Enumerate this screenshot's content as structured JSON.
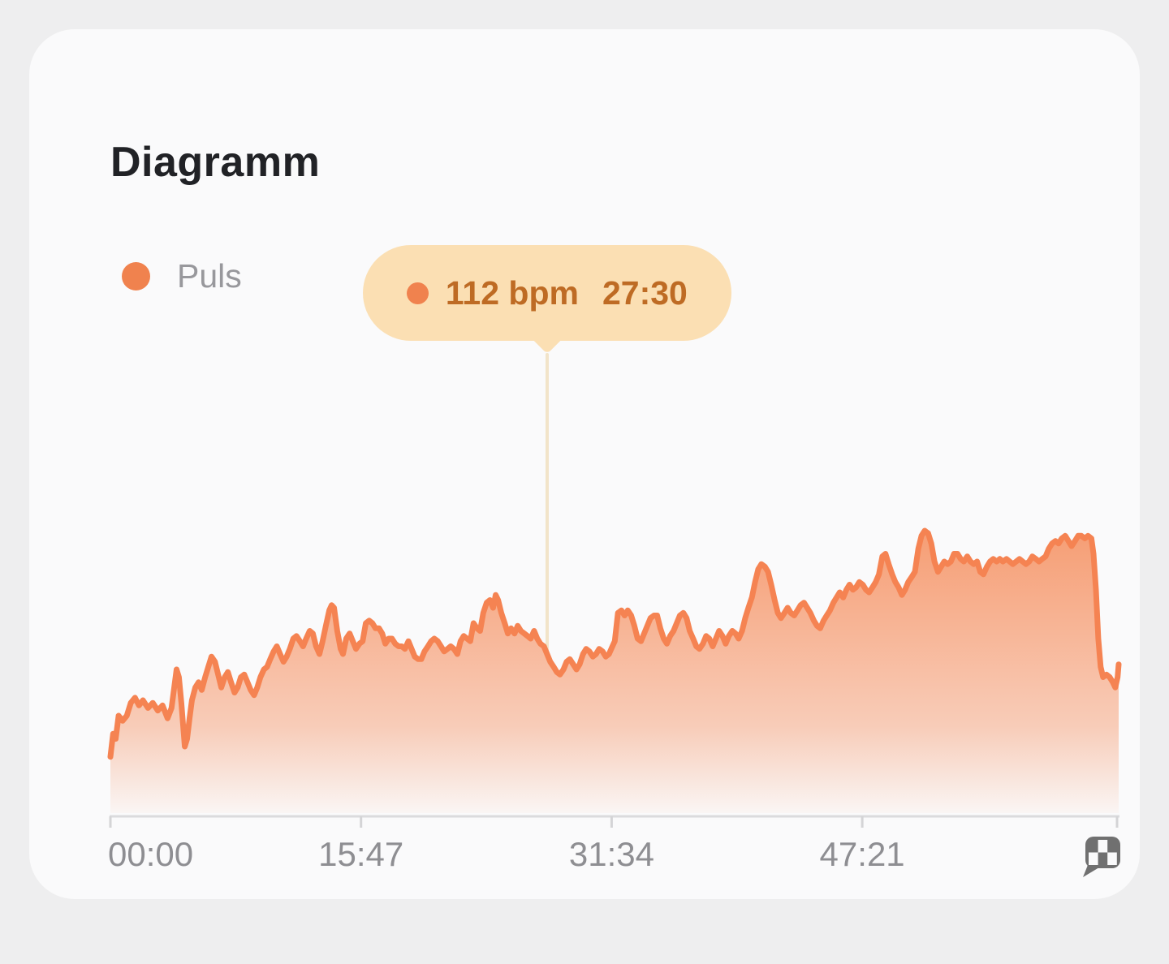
{
  "card": {
    "title": "Diagramm"
  },
  "legend": {
    "label": "Puls",
    "dot_color": "#F0824E",
    "label_color": "#98989C"
  },
  "tooltip": {
    "value": "112 bpm",
    "time": "27:30",
    "bg": "#FBDFB3",
    "text_color": "#BE6B24",
    "dot_color": "#F0824E"
  },
  "icons": {
    "end_of_axis": "finish-flag-icon",
    "legend_marker": "legend-dot-icon",
    "tooltip_marker": "tooltip-dot-icon"
  },
  "colors": {
    "page_bg": "#EEEEEF",
    "card_bg": "#FAFAFB",
    "line": "#F58352",
    "fill": "#F5824C",
    "axis": "#DBDBDD",
    "tick": "#D4D4D6",
    "tick_label": "#8E8E92",
    "marker_line": "#F2E4C9",
    "flag": "#707070",
    "title": "#212226"
  },
  "chart_data": {
    "type": "area",
    "title": "Diagramm",
    "series_name": "Puls",
    "unit": "bpm",
    "legend_position": "top-left",
    "grid": false,
    "x_axis": {
      "tick_labels": [
        "00:00",
        "15:47",
        "31:34",
        "47:21"
      ],
      "tick_t_s": [
        0,
        947,
        1894,
        2841
      ],
      "t_max_s": 3810,
      "end_marker": "finish-flag"
    },
    "y_axis": {
      "visible": false,
      "est_range_bpm": [
        70,
        162
      ]
    },
    "highlighted_point": {
      "t_s": 1650,
      "t_label": "27:30",
      "bpm": 112
    },
    "points": [
      [
        0,
        72
      ],
      [
        10,
        81
      ],
      [
        20,
        79
      ],
      [
        31,
        88
      ],
      [
        46,
        86
      ],
      [
        62,
        88
      ],
      [
        77,
        93
      ],
      [
        93,
        95
      ],
      [
        108,
        92
      ],
      [
        123,
        94
      ],
      [
        142,
        91
      ],
      [
        160,
        93
      ],
      [
        179,
        90
      ],
      [
        197,
        92
      ],
      [
        216,
        87
      ],
      [
        231,
        91
      ],
      [
        241,
        99
      ],
      [
        250,
        106
      ],
      [
        259,
        103
      ],
      [
        268,
        93
      ],
      [
        281,
        76
      ],
      [
        290,
        79
      ],
      [
        299,
        87
      ],
      [
        308,
        94
      ],
      [
        321,
        99
      ],
      [
        333,
        101
      ],
      [
        345,
        98
      ],
      [
        358,
        103
      ],
      [
        370,
        107
      ],
      [
        382,
        111
      ],
      [
        395,
        109
      ],
      [
        407,
        104
      ],
      [
        419,
        99
      ],
      [
        432,
        103
      ],
      [
        444,
        105
      ],
      [
        456,
        101
      ],
      [
        469,
        97
      ],
      [
        481,
        99
      ],
      [
        493,
        103
      ],
      [
        506,
        104
      ],
      [
        518,
        101
      ],
      [
        530,
        98
      ],
      [
        543,
        96
      ],
      [
        555,
        99
      ],
      [
        567,
        103
      ],
      [
        580,
        106
      ],
      [
        592,
        107
      ],
      [
        604,
        110
      ],
      [
        617,
        113
      ],
      [
        629,
        115
      ],
      [
        641,
        112
      ],
      [
        654,
        109
      ],
      [
        666,
        111
      ],
      [
        678,
        114
      ],
      [
        691,
        118
      ],
      [
        703,
        119
      ],
      [
        716,
        117
      ],
      [
        728,
        115
      ],
      [
        740,
        118
      ],
      [
        753,
        121
      ],
      [
        765,
        120
      ],
      [
        777,
        115
      ],
      [
        790,
        112
      ],
      [
        802,
        117
      ],
      [
        814,
        123
      ],
      [
        827,
        129
      ],
      [
        836,
        131
      ],
      [
        845,
        130
      ],
      [
        857,
        121
      ],
      [
        870,
        114
      ],
      [
        879,
        112
      ],
      [
        891,
        118
      ],
      [
        904,
        120
      ],
      [
        916,
        117
      ],
      [
        928,
        114
      ],
      [
        941,
        116
      ],
      [
        953,
        117
      ],
      [
        965,
        124
      ],
      [
        978,
        125
      ],
      [
        990,
        124
      ],
      [
        1002,
        122
      ],
      [
        1015,
        122
      ],
      [
        1027,
        120
      ],
      [
        1039,
        116
      ],
      [
        1052,
        118
      ],
      [
        1064,
        118
      ],
      [
        1076,
        116
      ],
      [
        1089,
        115
      ],
      [
        1101,
        115
      ],
      [
        1113,
        114
      ],
      [
        1126,
        117
      ],
      [
        1138,
        114
      ],
      [
        1150,
        111
      ],
      [
        1163,
        110
      ],
      [
        1175,
        110
      ],
      [
        1187,
        113
      ],
      [
        1200,
        115
      ],
      [
        1212,
        117
      ],
      [
        1224,
        118
      ],
      [
        1237,
        117
      ],
      [
        1249,
        115
      ],
      [
        1261,
        113
      ],
      [
        1274,
        114
      ],
      [
        1286,
        115
      ],
      [
        1298,
        114
      ],
      [
        1311,
        112
      ],
      [
        1323,
        117
      ],
      [
        1335,
        119
      ],
      [
        1348,
        118
      ],
      [
        1360,
        117
      ],
      [
        1372,
        124
      ],
      [
        1385,
        122
      ],
      [
        1397,
        121
      ],
      [
        1409,
        128
      ],
      [
        1422,
        132
      ],
      [
        1434,
        133
      ],
      [
        1446,
        130
      ],
      [
        1456,
        135
      ],
      [
        1465,
        133
      ],
      [
        1477,
        128
      ],
      [
        1490,
        124
      ],
      [
        1502,
        120
      ],
      [
        1514,
        122
      ],
      [
        1527,
        120
      ],
      [
        1539,
        123
      ],
      [
        1551,
        121
      ],
      [
        1564,
        120
      ],
      [
        1576,
        119
      ],
      [
        1588,
        118
      ],
      [
        1601,
        121
      ],
      [
        1613,
        118
      ],
      [
        1625,
        116
      ],
      [
        1638,
        115
      ],
      [
        1650,
        112
      ],
      [
        1662,
        109
      ],
      [
        1675,
        107
      ],
      [
        1687,
        105
      ],
      [
        1699,
        104
      ],
      [
        1712,
        106
      ],
      [
        1724,
        109
      ],
      [
        1736,
        110
      ],
      [
        1749,
        108
      ],
      [
        1761,
        106
      ],
      [
        1773,
        108
      ],
      [
        1786,
        112
      ],
      [
        1798,
        114
      ],
      [
        1810,
        113
      ],
      [
        1823,
        111
      ],
      [
        1835,
        112
      ],
      [
        1847,
        114
      ],
      [
        1860,
        113
      ],
      [
        1872,
        111
      ],
      [
        1884,
        112
      ],
      [
        1897,
        115
      ],
      [
        1906,
        117
      ],
      [
        1918,
        128
      ],
      [
        1931,
        129
      ],
      [
        1943,
        127
      ],
      [
        1955,
        129
      ],
      [
        1968,
        127
      ],
      [
        1980,
        123
      ],
      [
        1992,
        118
      ],
      [
        2005,
        117
      ],
      [
        2017,
        120
      ],
      [
        2029,
        123
      ],
      [
        2041,
        126
      ],
      [
        2054,
        127
      ],
      [
        2066,
        127
      ],
      [
        2078,
        122
      ],
      [
        2091,
        118
      ],
      [
        2103,
        116
      ],
      [
        2115,
        119
      ],
      [
        2128,
        121
      ],
      [
        2140,
        124
      ],
      [
        2152,
        127
      ],
      [
        2165,
        128
      ],
      [
        2177,
        126
      ],
      [
        2189,
        121
      ],
      [
        2202,
        118
      ],
      [
        2214,
        115
      ],
      [
        2226,
        114
      ],
      [
        2239,
        116
      ],
      [
        2251,
        119
      ],
      [
        2263,
        118
      ],
      [
        2276,
        115
      ],
      [
        2288,
        118
      ],
      [
        2300,
        121
      ],
      [
        2313,
        119
      ],
      [
        2325,
        116
      ],
      [
        2337,
        119
      ],
      [
        2350,
        121
      ],
      [
        2362,
        120
      ],
      [
        2374,
        118
      ],
      [
        2387,
        121
      ],
      [
        2399,
        126
      ],
      [
        2411,
        130
      ],
      [
        2424,
        134
      ],
      [
        2436,
        140
      ],
      [
        2448,
        145
      ],
      [
        2460,
        147
      ],
      [
        2473,
        146
      ],
      [
        2485,
        144
      ],
      [
        2497,
        139
      ],
      [
        2510,
        133
      ],
      [
        2522,
        128
      ],
      [
        2534,
        126
      ],
      [
        2547,
        128
      ],
      [
        2559,
        130
      ],
      [
        2571,
        128
      ],
      [
        2584,
        127
      ],
      [
        2596,
        129
      ],
      [
        2608,
        131
      ],
      [
        2621,
        132
      ],
      [
        2633,
        130
      ],
      [
        2645,
        128
      ],
      [
        2658,
        125
      ],
      [
        2670,
        123
      ],
      [
        2682,
        122
      ],
      [
        2695,
        125
      ],
      [
        2707,
        127
      ],
      [
        2719,
        129
      ],
      [
        2732,
        132
      ],
      [
        2744,
        134
      ],
      [
        2756,
        136
      ],
      [
        2769,
        134
      ],
      [
        2781,
        137
      ],
      [
        2793,
        139
      ],
      [
        2806,
        137
      ],
      [
        2818,
        138
      ],
      [
        2830,
        140
      ],
      [
        2843,
        139
      ],
      [
        2855,
        137
      ],
      [
        2867,
        136
      ],
      [
        2880,
        138
      ],
      [
        2892,
        140
      ],
      [
        2904,
        143
      ],
      [
        2917,
        150
      ],
      [
        2929,
        151
      ],
      [
        2941,
        147
      ],
      [
        2954,
        143
      ],
      [
        2966,
        140
      ],
      [
        2978,
        138
      ],
      [
        2991,
        135
      ],
      [
        3003,
        137
      ],
      [
        3015,
        140
      ],
      [
        3028,
        142
      ],
      [
        3040,
        144
      ],
      [
        3053,
        153
      ],
      [
        3065,
        158
      ],
      [
        3077,
        160
      ],
      [
        3090,
        159
      ],
      [
        3102,
        155
      ],
      [
        3114,
        148
      ],
      [
        3127,
        144
      ],
      [
        3139,
        146
      ],
      [
        3151,
        148
      ],
      [
        3164,
        147
      ],
      [
        3176,
        148
      ],
      [
        3188,
        151
      ],
      [
        3201,
        151
      ],
      [
        3213,
        149
      ],
      [
        3225,
        148
      ],
      [
        3238,
        150
      ],
      [
        3250,
        148
      ],
      [
        3262,
        147
      ],
      [
        3275,
        148
      ],
      [
        3287,
        144
      ],
      [
        3299,
        143
      ],
      [
        3312,
        146
      ],
      [
        3324,
        148
      ],
      [
        3336,
        149
      ],
      [
        3349,
        148
      ],
      [
        3361,
        149
      ],
      [
        3373,
        148
      ],
      [
        3386,
        149
      ],
      [
        3398,
        148
      ],
      [
        3410,
        147
      ],
      [
        3423,
        148
      ],
      [
        3435,
        149
      ],
      [
        3447,
        148
      ],
      [
        3460,
        147
      ],
      [
        3472,
        148
      ],
      [
        3484,
        150
      ],
      [
        3497,
        149
      ],
      [
        3509,
        148
      ],
      [
        3521,
        149
      ],
      [
        3534,
        150
      ],
      [
        3546,
        153
      ],
      [
        3558,
        155
      ],
      [
        3571,
        156
      ],
      [
        3583,
        155
      ],
      [
        3595,
        157
      ],
      [
        3608,
        158
      ],
      [
        3620,
        156
      ],
      [
        3632,
        154
      ],
      [
        3645,
        156
      ],
      [
        3657,
        158
      ],
      [
        3669,
        158
      ],
      [
        3682,
        157
      ],
      [
        3694,
        158
      ],
      [
        3707,
        157
      ],
      [
        3715,
        151
      ],
      [
        3724,
        137
      ],
      [
        3733,
        118
      ],
      [
        3742,
        107
      ],
      [
        3751,
        103
      ],
      [
        3764,
        104
      ],
      [
        3776,
        103
      ],
      [
        3788,
        101
      ],
      [
        3797,
        99
      ],
      [
        3806,
        103
      ],
      [
        3810,
        108
      ]
    ]
  }
}
